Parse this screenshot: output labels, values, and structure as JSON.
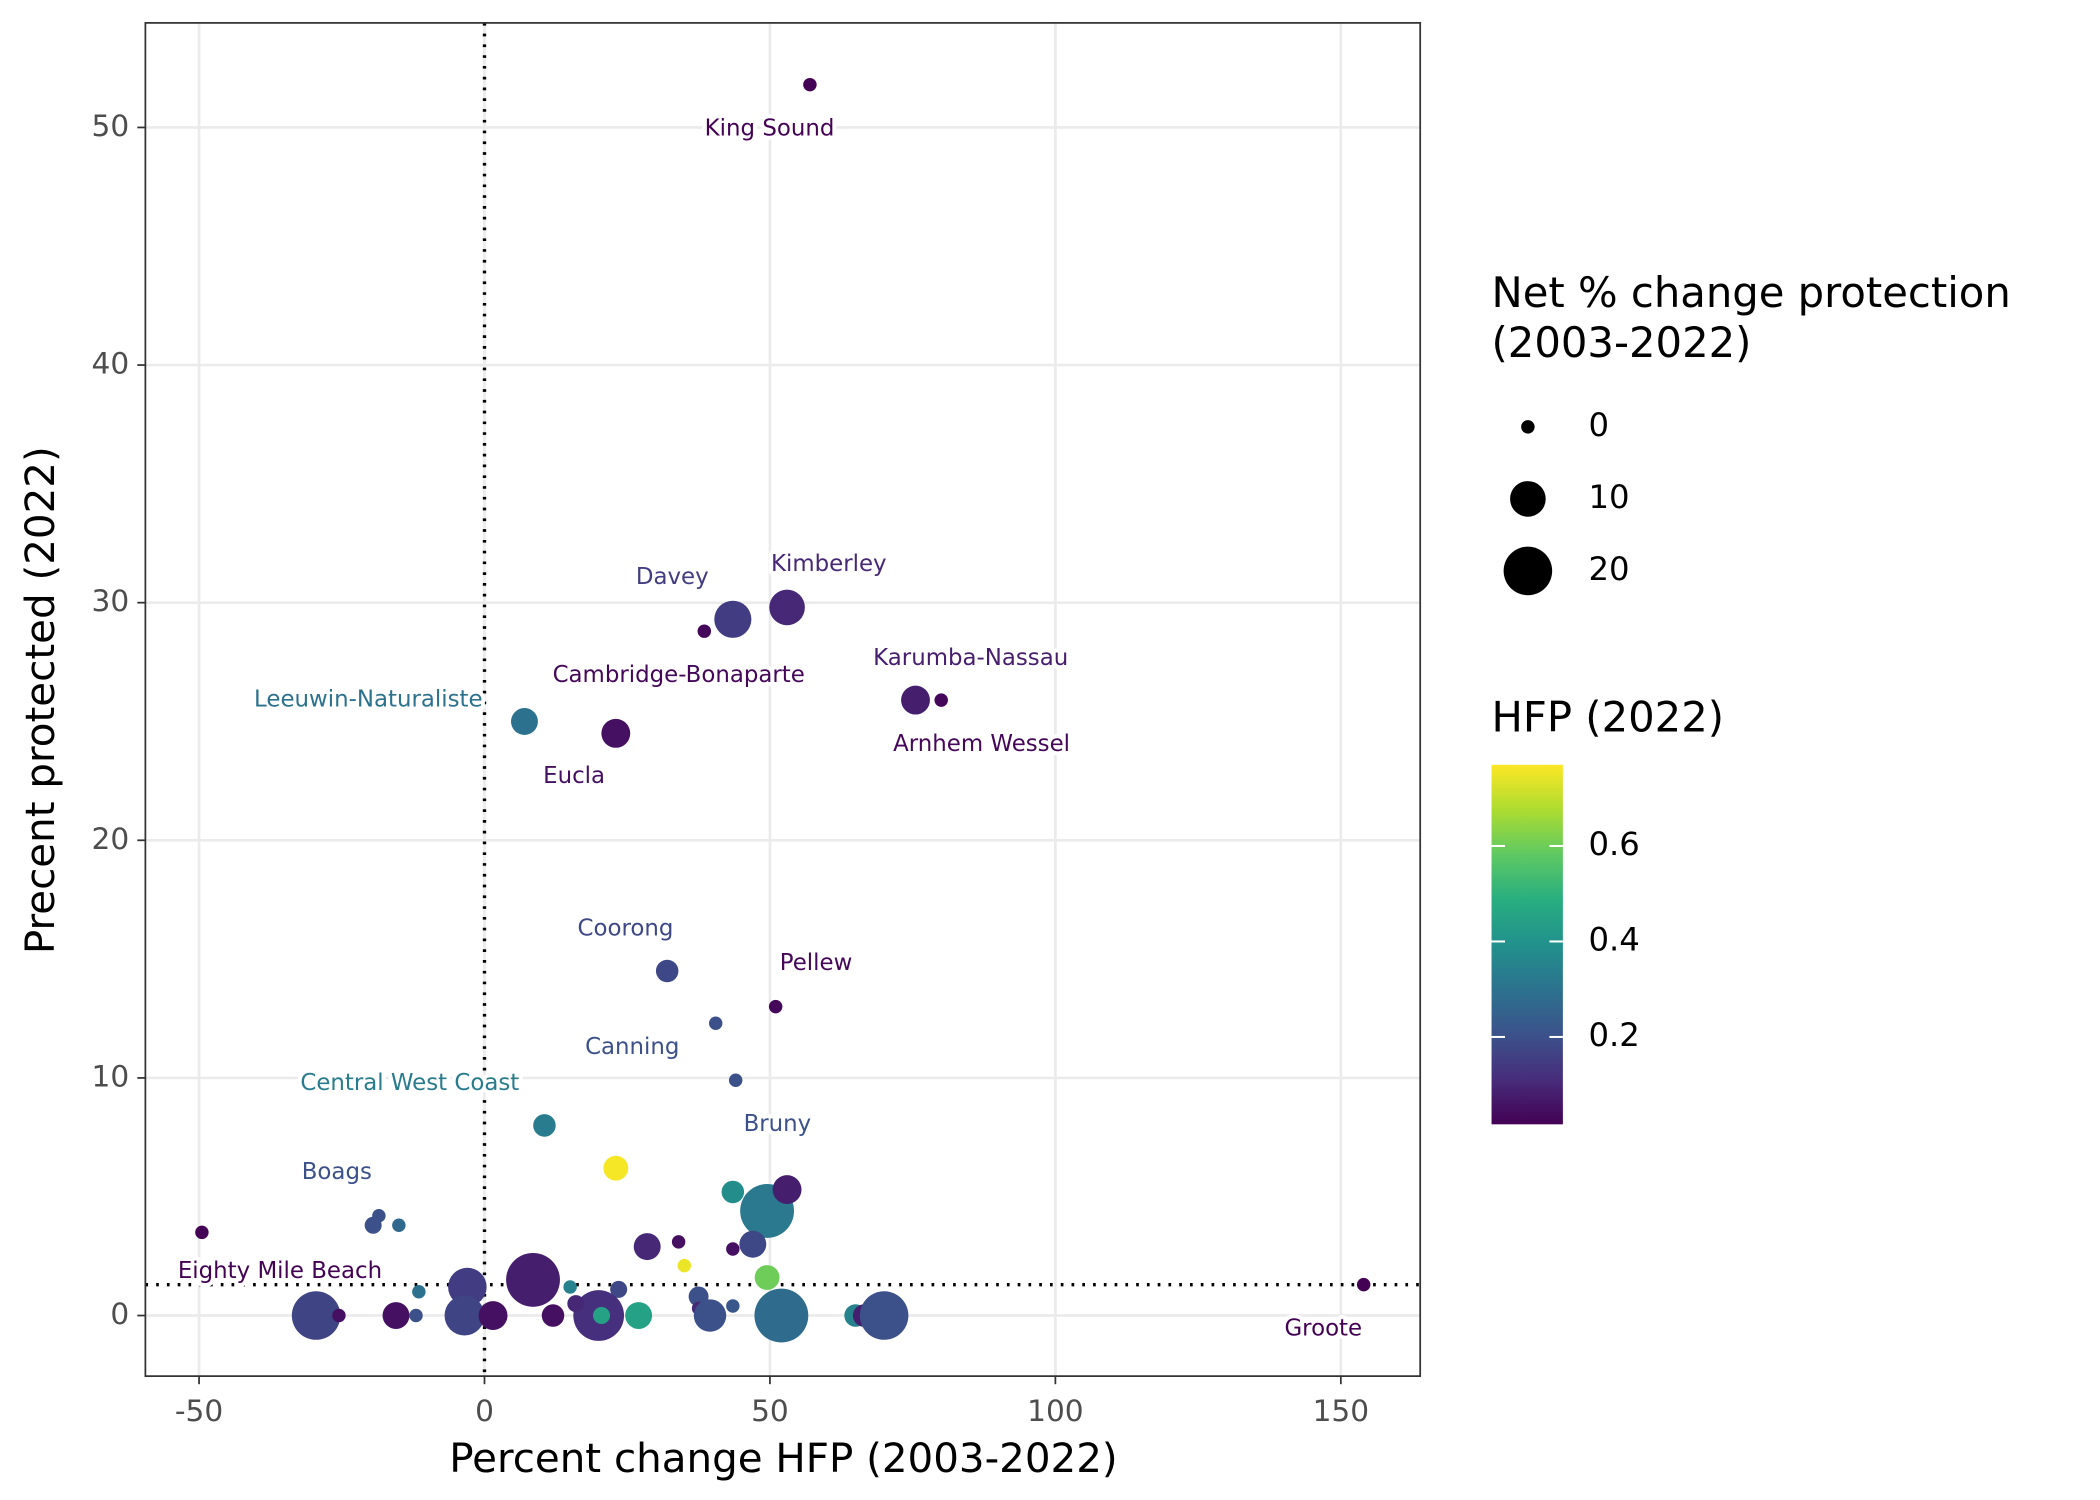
{
  "chart_data": {
    "type": "scatter",
    "x_label": "Percent change HFP (2003-2022)",
    "y_label": "Precent protected (2022)",
    "xlim": [
      -59.4,
      163.9
    ],
    "ylim": [
      -2.55,
      54.4
    ],
    "xticks": [
      -50,
      0,
      50,
      100,
      150
    ],
    "yticks": [
      0,
      10,
      20,
      30,
      40,
      50
    ],
    "grid": true,
    "reference_lines": {
      "x": 0,
      "y": 1.3
    },
    "x": [
      57,
      43.5,
      38.5,
      53,
      75.5,
      80,
      7,
      23,
      32,
      51,
      40.5,
      44,
      10.5,
      23,
      49.5,
      53,
      43.5,
      -19.5,
      -18.5,
      -15,
      -49.5,
      28.5,
      34,
      35,
      47,
      43.5,
      49.5,
      154,
      -3,
      8.5,
      -11.5,
      15,
      23.5,
      -29.5,
      -25.5,
      -15.5,
      -12,
      -3.5,
      1.5,
      12,
      20,
      20.5,
      27,
      37.5,
      37.5,
      39.5,
      43.5,
      52,
      65,
      66.5,
      70,
      16
    ],
    "values": [
      51.8,
      29.3,
      28.8,
      29.8,
      25.9,
      25.9,
      25,
      24.5,
      14.5,
      13,
      12.3,
      9.9,
      8,
      6.2,
      4.4,
      5.3,
      5.2,
      3.8,
      4.2,
      3.8,
      3.5,
      2.9,
      3.1,
      2.1,
      3,
      2.8,
      1.6,
      1.3,
      1.2,
      1.5,
      1,
      1.2,
      1.1,
      0,
      0,
      0,
      0,
      0,
      0,
      0,
      0,
      0,
      0,
      0.8,
      0.3,
      0,
      0.4,
      0,
      0,
      0,
      0,
      0.5
    ],
    "sizes": [
      0,
      11,
      0,
      10,
      6,
      0,
      5,
      6,
      3,
      0,
      0,
      0,
      3,
      4,
      25,
      6,
      3,
      1,
      0,
      0,
      0,
      5,
      0,
      0,
      5,
      0,
      4,
      0,
      12,
      25,
      0,
      0,
      1,
      20,
      0,
      5,
      0,
      13,
      6,
      3,
      22,
      1,
      5,
      2,
      0,
      8,
      0,
      25,
      3,
      3,
      20,
      1
    ],
    "color_values": [
      0.02,
      0.15,
      0.03,
      0.1,
      0.08,
      0.03,
      0.3,
      0.05,
      0.18,
      0.03,
      0.2,
      0.2,
      0.33,
      0.76,
      0.32,
      0.08,
      0.38,
      0.2,
      0.2,
      0.27,
      0.02,
      0.1,
      0.05,
      0.75,
      0.18,
      0.05,
      0.6,
      0.02,
      0.15,
      0.08,
      0.3,
      0.35,
      0.18,
      0.17,
      0.05,
      0.05,
      0.2,
      0.17,
      0.05,
      0.05,
      0.12,
      0.45,
      0.45,
      0.2,
      0.1,
      0.2,
      0.22,
      0.28,
      0.35,
      0.08,
      0.2,
      0.1
    ],
    "point_labels": [
      "King Sound",
      "Davey",
      "Cambridge-Bonaparte",
      "Kimberley",
      "Karumba-Nassau",
      "Arnhem Wessel",
      "Leeuwin-Naturaliste",
      "Eucla",
      "Coorong",
      "Pellew",
      "Canning",
      "Bruny",
      "Central West Coast",
      null,
      null,
      null,
      null,
      "Boags",
      null,
      null,
      "Eighty Mile Beach",
      null,
      null,
      null,
      null,
      null,
      null,
      "Groote",
      null,
      null,
      null,
      null,
      null,
      null,
      null,
      null,
      null,
      null,
      null,
      null,
      null,
      null,
      null,
      null,
      null,
      null,
      null,
      null,
      null,
      null,
      null,
      null
    ],
    "size_legend": {
      "title": [
        "Net % change protection",
        "(2003-2022)"
      ],
      "breaks": [
        0,
        10,
        20
      ]
    },
    "color_legend": {
      "title": "HFP (2022)",
      "palette": "viridis",
      "limits": [
        0.017,
        0.77
      ],
      "breaks": [
        0.2,
        0.4,
        0.6
      ]
    }
  }
}
